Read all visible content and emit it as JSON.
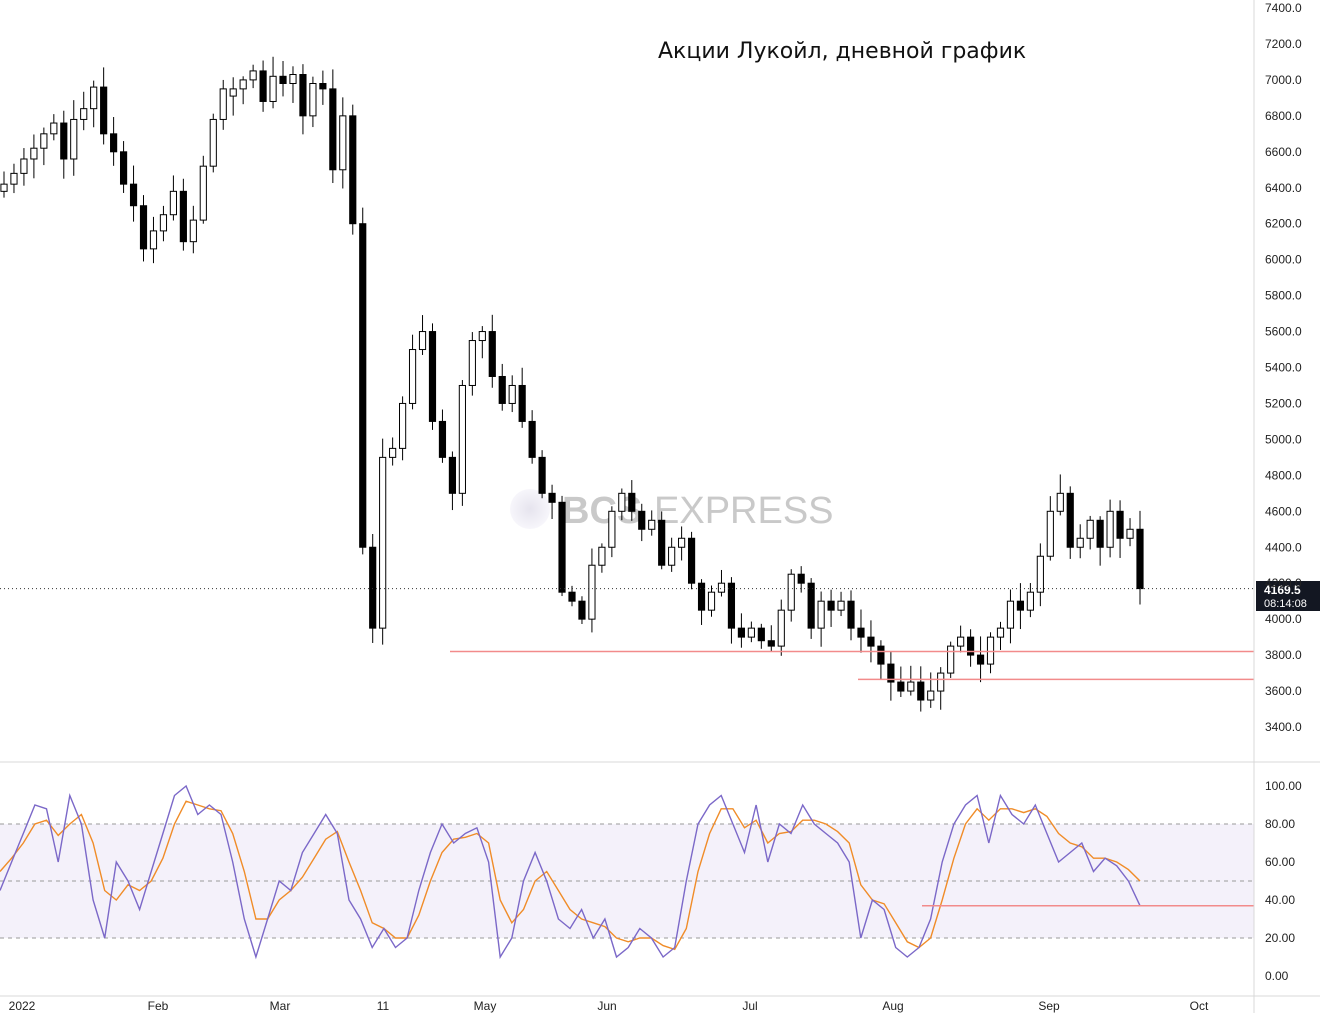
{
  "title": "Акции Лукойл, дневной график",
  "watermark": {
    "bold": "BCS",
    "light": "EXPRESS"
  },
  "price_label": {
    "value": "4169.5",
    "countdown": "08:14:08"
  },
  "colors": {
    "candle": "#000000",
    "support": "#f28b8b",
    "k_line": "#7b68c8",
    "d_line": "#f08c28",
    "band": "#f4f1fa"
  },
  "x_axis": {
    "labels": [
      "2022",
      "Feb",
      "Mar",
      "11",
      "May",
      "Jun",
      "Jul",
      "Aug",
      "Sep",
      "Oct"
    ]
  },
  "chart_data": [
    {
      "type": "candlestick",
      "title": "Акции Лукойл, дневной график",
      "ylim": [
        3300,
        7400
      ],
      "y_ticks": [
        "7400.0",
        "7200.0",
        "7000.0",
        "6800.0",
        "6600.0",
        "6400.0",
        "6200.0",
        "6000.0",
        "5800.0",
        "5600.0",
        "5400.0",
        "5200.0",
        "5000.0",
        "4800.0",
        "4600.0",
        "4400.0",
        "4200.0",
        "4000.0",
        "3800.0",
        "3600.0",
        "3400.0"
      ],
      "last_price": 4169.5,
      "support_levels": [
        3820,
        3665
      ],
      "close_series": [
        6420,
        6480,
        6560,
        6620,
        6700,
        6760,
        6560,
        6780,
        6840,
        6960,
        6700,
        6600,
        6420,
        6300,
        6060,
        6160,
        6250,
        6380,
        6100,
        6220,
        6520,
        6780,
        6950,
        6950,
        7000,
        7050,
        6880,
        7020,
        6980,
        7030,
        6800,
        6980,
        6950,
        6500,
        6800,
        6200,
        4400,
        3950,
        4900,
        4950,
        5200,
        5500,
        5600,
        5100,
        4900,
        4700,
        5300,
        5550,
        5600,
        5350,
        5200,
        5300,
        5100,
        4900,
        4700,
        4650,
        4150,
        4100,
        4000,
        4300,
        4400,
        4600,
        4700,
        4600,
        4500,
        4550,
        4300,
        4400,
        4450,
        4200,
        4050,
        4150,
        4200,
        3950,
        3900,
        3950,
        3880,
        3850,
        4050,
        4250,
        4200,
        3950,
        4100,
        4050,
        4100,
        3950,
        3900,
        3850,
        3750,
        3650,
        3600,
        3650,
        3550,
        3600,
        3700,
        3850,
        3900,
        3800,
        3750,
        3900,
        3950,
        4100,
        4050,
        4150,
        4350,
        4600,
        4700,
        4400,
        4450,
        4550,
        4400,
        4600,
        4450,
        4500,
        4170
      ]
    },
    {
      "type": "line",
      "name": "Stochastic",
      "ylim": [
        -10,
        110
      ],
      "y_ticks": [
        "100.00",
        "80.00",
        "60.00",
        "40.00",
        "20.00",
        "0.00"
      ],
      "bands": [
        80,
        50,
        20
      ],
      "support_level": 37,
      "k": [
        45,
        60,
        75,
        90,
        88,
        60,
        95,
        80,
        40,
        20,
        60,
        50,
        35,
        55,
        75,
        95,
        100,
        85,
        90,
        85,
        60,
        30,
        10,
        30,
        50,
        45,
        65,
        75,
        85,
        75,
        40,
        30,
        15,
        25,
        15,
        20,
        45,
        65,
        80,
        70,
        75,
        78,
        60,
        10,
        20,
        50,
        65,
        50,
        30,
        25,
        35,
        20,
        30,
        10,
        15,
        25,
        20,
        10,
        15,
        50,
        80,
        90,
        95,
        80,
        65,
        90,
        60,
        80,
        75,
        90,
        80,
        75,
        70,
        60,
        20,
        40,
        35,
        15,
        10,
        15,
        30,
        60,
        80,
        90,
        95,
        70,
        95,
        85,
        80,
        90,
        75,
        60,
        65,
        70,
        55,
        62,
        58,
        50,
        37
      ],
      "d": [
        55,
        62,
        70,
        80,
        82,
        74,
        80,
        85,
        70,
        45,
        40,
        48,
        45,
        50,
        62,
        80,
        92,
        90,
        88,
        87,
        75,
        55,
        30,
        30,
        40,
        45,
        52,
        62,
        72,
        76,
        60,
        45,
        28,
        25,
        20,
        20,
        32,
        50,
        65,
        72,
        73,
        75,
        70,
        40,
        28,
        35,
        50,
        55,
        45,
        35,
        30,
        28,
        26,
        20,
        18,
        20,
        20,
        16,
        14,
        25,
        55,
        75,
        88,
        88,
        78,
        82,
        70,
        75,
        76,
        82,
        82,
        80,
        76,
        70,
        48,
        40,
        38,
        28,
        18,
        15,
        20,
        40,
        62,
        80,
        88,
        82,
        88,
        88,
        86,
        88,
        84,
        75,
        70,
        68,
        62,
        62,
        60,
        56,
        50
      ]
    }
  ]
}
